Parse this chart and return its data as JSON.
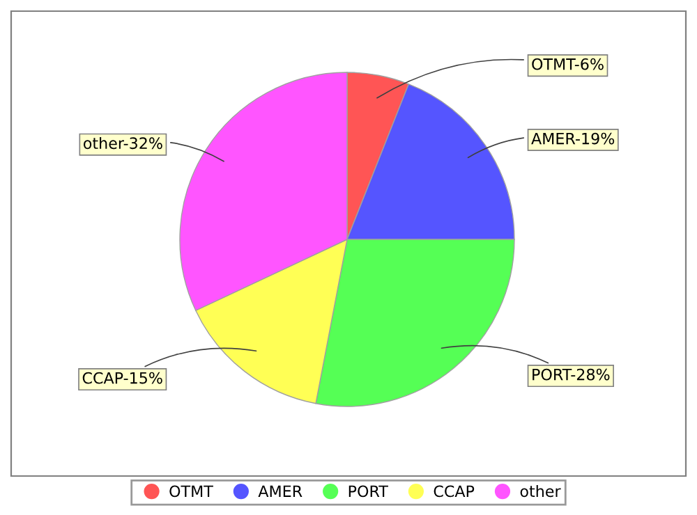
{
  "chart_data": {
    "type": "pie",
    "categories": [
      "OTMT",
      "AMER",
      "PORT",
      "CCAP",
      "other"
    ],
    "values": [
      6,
      19,
      28,
      15,
      32
    ],
    "colors": [
      "#ff5555",
      "#5555ff",
      "#55ff55",
      "#ffff55",
      "#ff55ff"
    ],
    "value_labels": [
      "OTMT-6%",
      "AMER-19%",
      "PORT-28%",
      "CCAP-15%",
      "other-32%"
    ],
    "legend": "bottom"
  }
}
